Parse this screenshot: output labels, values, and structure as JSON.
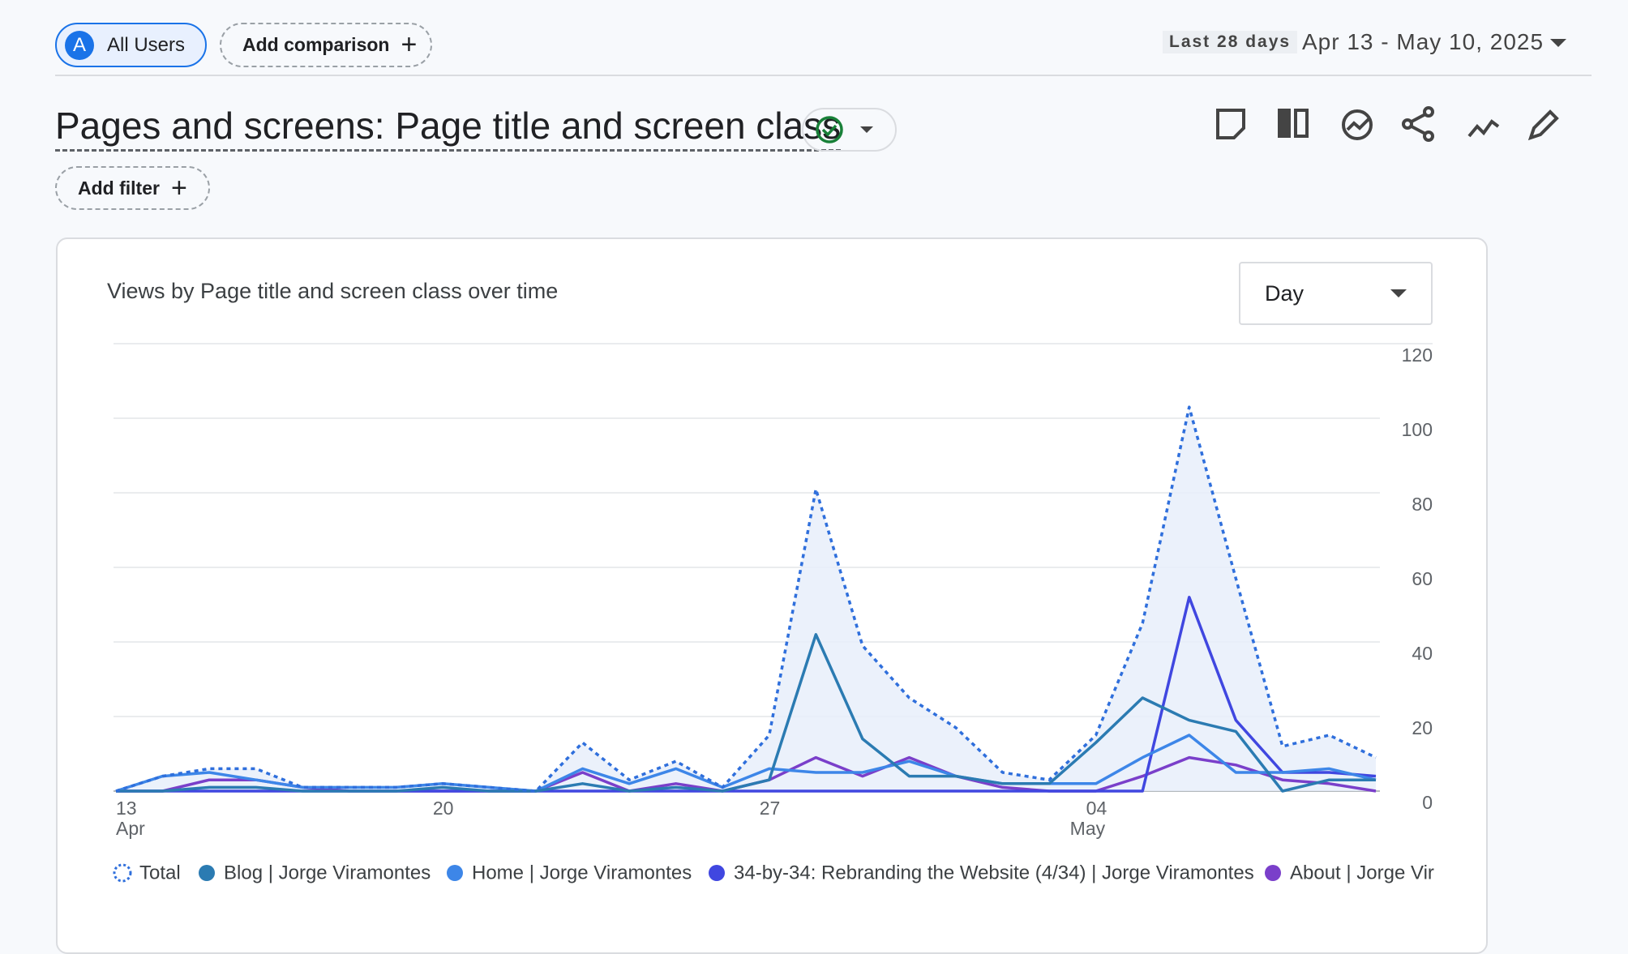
{
  "header": {
    "segment_avatar": "A",
    "segment": "All Users",
    "add_comparison": "Add comparison",
    "range_label": "Last 28 days",
    "date_range": "Apr 13 - May 10, 2025"
  },
  "report": {
    "title": "Pages and screens: Page title and screen class",
    "add_filter": "Add filter"
  },
  "chart_data": {
    "type": "line",
    "title": "Views by Page title and screen class over time",
    "granularity": "Day",
    "categories": [
      "13",
      null,
      null,
      null,
      null,
      null,
      null,
      "20",
      null,
      null,
      null,
      null,
      null,
      null,
      "27",
      null,
      null,
      null,
      null,
      null,
      null,
      "04",
      null,
      null,
      null,
      null,
      null,
      null
    ],
    "month_labels": [
      "Apr",
      "May"
    ],
    "series": [
      {
        "name": "Total",
        "color": "#2f6fdc",
        "dotted": true,
        "values": [
          0,
          4,
          6,
          6,
          1,
          1,
          1,
          2,
          1,
          0,
          13,
          3,
          8,
          1,
          15,
          81,
          39,
          25,
          17,
          5,
          3,
          15,
          45,
          103,
          57,
          12,
          15,
          9
        ]
      },
      {
        "name": "Blog | Jorge Viramontes",
        "color": "#2b7bb2",
        "values": [
          0,
          0,
          1,
          1,
          0,
          0,
          0,
          1,
          0,
          0,
          2,
          0,
          1,
          0,
          3,
          42,
          14,
          4,
          4,
          2,
          2,
          13,
          25,
          19,
          16,
          0,
          3,
          3
        ]
      },
      {
        "name": "Home | Jorge Viramontes",
        "color": "#3d86e8",
        "values": [
          0,
          4,
          5,
          3,
          1,
          1,
          1,
          2,
          1,
          0,
          6,
          2,
          6,
          1,
          6,
          5,
          5,
          8,
          4,
          2,
          2,
          2,
          9,
          15,
          5,
          5,
          6,
          3
        ]
      },
      {
        "name": "34-by-34: Rebranding the Website (4/34) | Jorge Viramontes",
        "color": "#4047e0",
        "values": [
          0,
          0,
          0,
          0,
          0,
          0,
          0,
          0,
          0,
          0,
          0,
          0,
          0,
          0,
          0,
          0,
          0,
          0,
          0,
          0,
          0,
          0,
          0,
          52,
          19,
          5,
          5,
          4
        ]
      },
      {
        "name": "About | Jorge Vir",
        "color": "#7a3fca",
        "values": [
          0,
          0,
          3,
          3,
          1,
          0,
          0,
          0,
          0,
          0,
          5,
          0,
          2,
          0,
          3,
          9,
          4,
          9,
          4,
          1,
          0,
          0,
          4,
          9,
          7,
          3,
          2,
          0
        ]
      }
    ],
    "ylim": [
      0,
      120
    ],
    "yticks": [
      0,
      20,
      40,
      60,
      80,
      100,
      120
    ],
    "grid": true,
    "y_axis_side": "right",
    "area_under_first_series": true
  }
}
